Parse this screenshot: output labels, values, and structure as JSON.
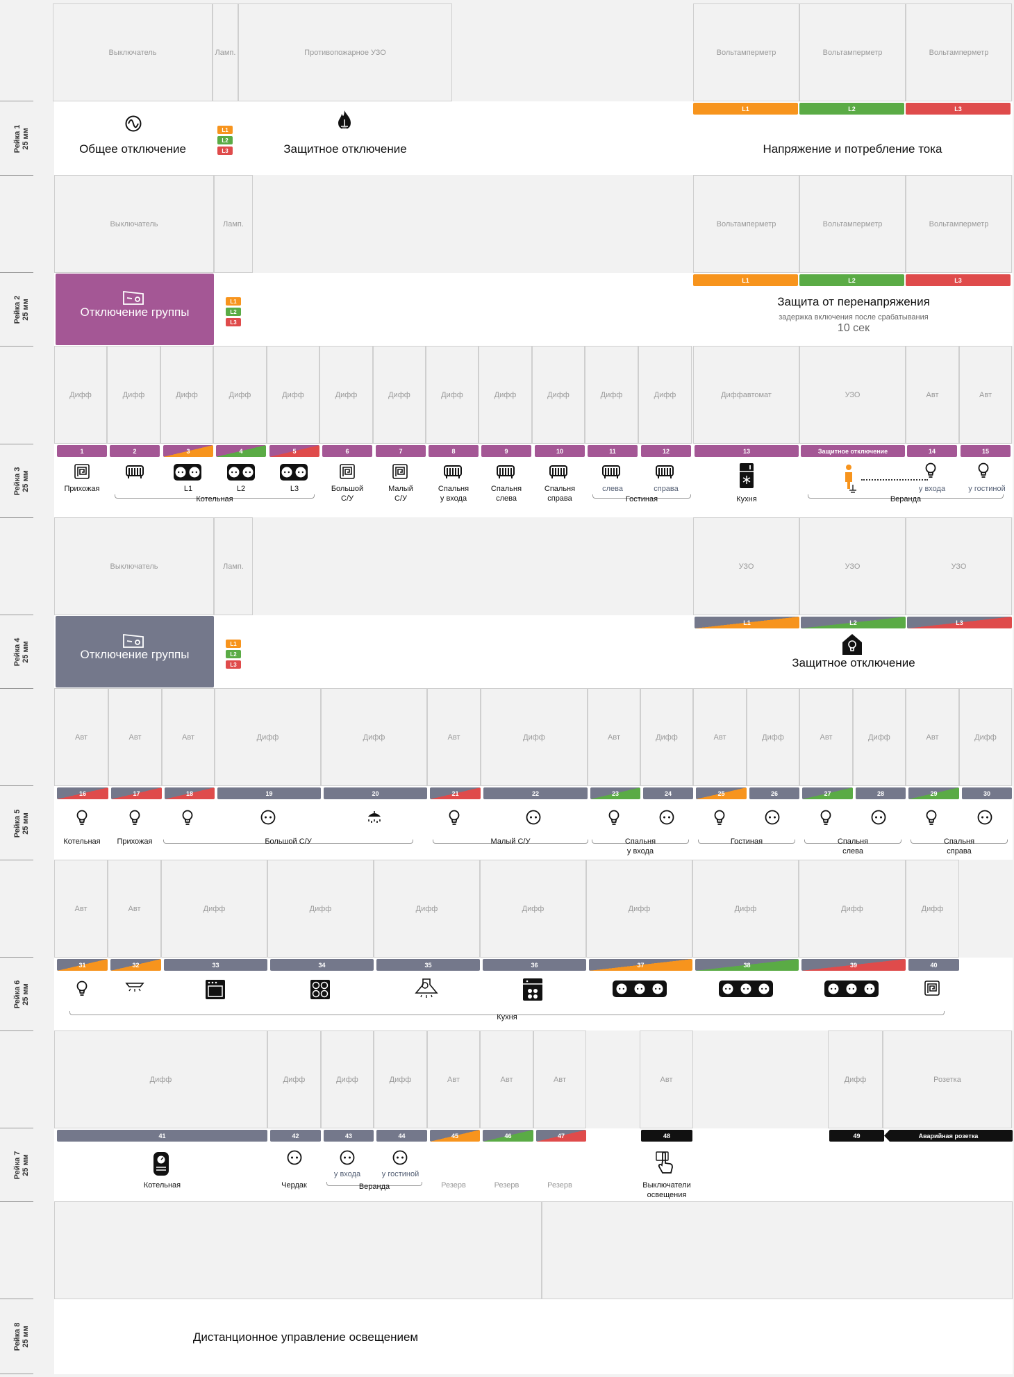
{
  "colors": {
    "L1": "#f7941d",
    "L2": "#5aab45",
    "L3": "#df4b4b",
    "purple": "#a45795",
    "slate": "#74788b",
    "black": "#111111"
  },
  "rails": [
    {
      "name": "Рейка 1",
      "size": "25 мм"
    },
    {
      "name": "Рейка 2",
      "size": "25 мм"
    },
    {
      "name": "Рейка 3",
      "size": "25 мм"
    },
    {
      "name": "Рейка 4",
      "size": "25 мм"
    },
    {
      "name": "Рейка 5",
      "size": "25 мм"
    },
    {
      "name": "Рейка 6",
      "size": "25 мм"
    },
    {
      "name": "Рейка 7",
      "size": "25 мм"
    },
    {
      "name": "Рейка 8",
      "size": "25 мм"
    }
  ],
  "phases": [
    "L1",
    "L2",
    "L3"
  ],
  "rail1": {
    "modules": [
      "Выключатель",
      "Ламп.",
      "Противопожарное УЗО",
      "Вольтамперметр",
      "Вольтамперметр",
      "Вольтамперметр"
    ],
    "main_off": "Общее отключение",
    "protective_off": "Защитное отключение",
    "voltage_current": "Напряжение и потребление тока",
    "phase_badges": [
      "L1",
      "L2",
      "L3"
    ],
    "icons": [
      "sine-wave-icon",
      "fire-ground-icon"
    ]
  },
  "rail2": {
    "modules": [
      "Выключатель",
      "Ламп.",
      "Вольтамперметр",
      "Вольтамперметр",
      "Вольтамперметр"
    ],
    "group_off": "Отключение группы",
    "overvoltage_title": "Защита от перенапряжения",
    "overvoltage_note": "задержка включения после срабатывания",
    "overvoltage_delay": "10 сек",
    "phase_badges": [
      "L1",
      "L2",
      "L3"
    ],
    "icons": [
      "toggle-switch-icon"
    ]
  },
  "rail3": {
    "modules": [
      "Дифф",
      "Дифф",
      "Дифф",
      "Дифф",
      "Дифф",
      "Дифф",
      "Дифф",
      "Дифф",
      "Дифф",
      "Дифф",
      "Дифф",
      "Дифф",
      "Диффавтомат",
      "УЗО",
      "Авт",
      "Авт"
    ],
    "badges": [
      "1",
      "2",
      "3",
      "4",
      "5",
      "6",
      "7",
      "8",
      "9",
      "10",
      "11",
      "12",
      "13",
      "Защитное отключение",
      "14",
      "15"
    ],
    "labels": [
      "Прихожая",
      "L1",
      "L2",
      "L3",
      "Большой\nС/У",
      "Малый\nС/У",
      "Спальня\nу входа",
      "Спальня\nслева",
      "Спальня\nсправа",
      "слева",
      "справа",
      "Кухня",
      "у входа",
      "у гостиной"
    ],
    "groups": [
      "Котельная",
      "Гостиная",
      "Веранда"
    ],
    "icons": [
      "floor-heating-icon",
      "radiator-icon",
      "socket-double-icon",
      "fridge-icon",
      "person-ground-icon",
      "bulb-icon"
    ]
  },
  "rail4": {
    "modules": [
      "Выключатель",
      "Ламп.",
      "УЗО",
      "УЗО",
      "УЗО"
    ],
    "group_off": "Отключение группы",
    "protective_off": "Защитное отключение",
    "phase_badges": [
      "L1",
      "L2",
      "L3"
    ],
    "icons": [
      "toggle-switch-icon",
      "house-bulb-icon"
    ]
  },
  "rail5": {
    "modules": [
      "Авт",
      "Авт",
      "Авт",
      "Дифф",
      "Дифф",
      "Авт",
      "Дифф",
      "Авт",
      "Дифф",
      "Авт",
      "Дифф",
      "Авт",
      "Дифф",
      "Авт",
      "Дифф"
    ],
    "badges": [
      "16",
      "17",
      "18",
      "19",
      "20",
      "21",
      "22",
      "23",
      "24",
      "25",
      "26",
      "27",
      "28",
      "29",
      "30"
    ],
    "labels": [
      "Котельная",
      "Прихожая",
      "Большой С/У",
      "Малый С/У",
      "Спальня\nу входа",
      "Гостиная",
      "Спальня\nслева",
      "Спальня\nсправа"
    ],
    "icons": [
      "bulb-icon",
      "socket-icon",
      "shower-icon"
    ]
  },
  "rail6": {
    "modules": [
      "Авт",
      "Авт",
      "Дифф",
      "Дифф",
      "Дифф",
      "Дифф",
      "Дифф",
      "Дифф",
      "Дифф",
      "Дифф"
    ],
    "badges": [
      "31",
      "32",
      "33",
      "34",
      "35",
      "36",
      "37",
      "38",
      "39",
      "40"
    ],
    "group": "Кухня",
    "icons": [
      "bulb-icon",
      "under-cabinet-light-icon",
      "oven-icon",
      "cooktop-icon",
      "hood-icon",
      "dishwasher-icon",
      "socket-triple-icon",
      "floor-heating-icon"
    ]
  },
  "rail7": {
    "modules": [
      "Дифф",
      "Дифф",
      "Дифф",
      "Дифф",
      "Авт",
      "Авт",
      "Авт",
      "Авт",
      "Дифф",
      "Розетка"
    ],
    "badges": [
      "41",
      "42",
      "43",
      "44",
      "45",
      "46",
      "47",
      "48",
      "49",
      "Аварийная розетка"
    ],
    "labels": [
      "Котельная",
      "Чердак",
      "у входа",
      "у гостиной",
      "Резерв",
      "Резерв",
      "Резерв",
      "Выключатели\nосвещения"
    ],
    "groups": [
      "Веранда"
    ],
    "icons": [
      "boiler-icon",
      "socket-icon",
      "hand-pointer-icon"
    ]
  },
  "rail8": {
    "remote_light": "Дистанционное управление освещением"
  }
}
